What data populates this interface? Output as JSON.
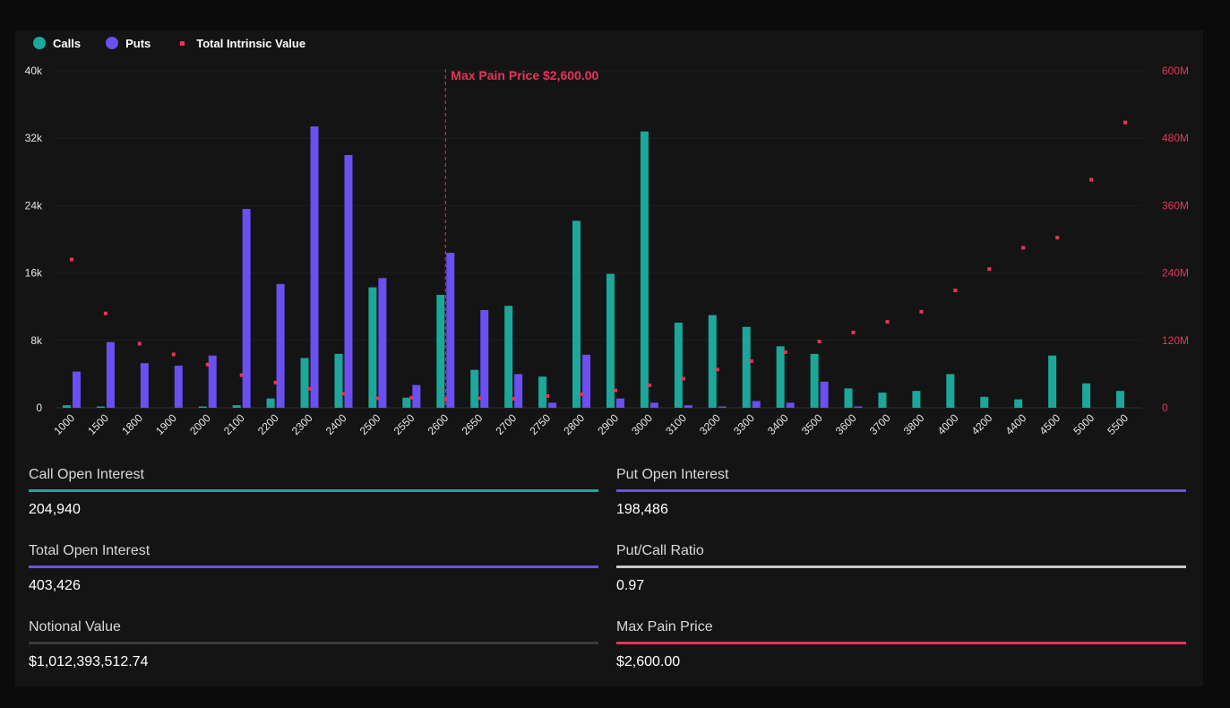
{
  "legend": {
    "calls_label": "Calls",
    "puts_label": "Puts",
    "tiv_label": "Total Intrinsic Value"
  },
  "colors": {
    "calls": "#1ba89a",
    "puts": "#6b4ff0",
    "tiv": "#e8345a",
    "axis_text": "#e6e6e6",
    "right_axis_text": "#e8345a",
    "gridline": "#1e1e1e"
  },
  "chart_data": {
    "type": "bar",
    "categories": [
      "1000",
      "1500",
      "1800",
      "1900",
      "2000",
      "2100",
      "2200",
      "2300",
      "2400",
      "2500",
      "2550",
      "2600",
      "2650",
      "2700",
      "2750",
      "2800",
      "2900",
      "3000",
      "3100",
      "3200",
      "3300",
      "3400",
      "3500",
      "3600",
      "3700",
      "3800",
      "4000",
      "4200",
      "4400",
      "4500",
      "5000",
      "5500"
    ],
    "series": [
      {
        "name": "Calls",
        "axis": "left",
        "values": [
          300,
          150,
          0,
          0,
          150,
          300,
          1100,
          5900,
          6400,
          14300,
          1200,
          13400,
          4500,
          12100,
          3700,
          22200,
          15900,
          32800,
          10100,
          11000,
          9600,
          7300,
          6400,
          2300,
          1800,
          2000,
          4000,
          1300,
          1000,
          6200,
          2900,
          2000
        ]
      },
      {
        "name": "Puts",
        "axis": "left",
        "values": [
          4300,
          7800,
          5300,
          5000,
          6200,
          23600,
          14700,
          33400,
          30000,
          15400,
          2700,
          18400,
          11600,
          4000,
          600,
          6300,
          1100,
          600,
          300,
          150,
          800,
          600,
          3100,
          150,
          0,
          0,
          0,
          0,
          0,
          0,
          0,
          0
        ]
      },
      {
        "name": "Total Intrinsic Value",
        "axis": "right",
        "type": "scatter",
        "values": [
          264000000,
          168000000,
          114000000,
          95000000,
          77000000,
          58000000,
          45000000,
          34000000,
          25000000,
          17000000,
          18000000,
          15000000,
          17000000,
          16000000,
          21000000,
          24000000,
          31000000,
          40000000,
          52000000,
          68000000,
          83000000,
          99000000,
          118000000,
          134000000,
          153000000,
          171000000,
          209000000,
          247000000,
          285000000,
          303000000,
          406000000,
          508000000
        ]
      }
    ],
    "y_left": {
      "min": 0,
      "max": 40000,
      "ticks": [
        "0",
        "8k",
        "16k",
        "24k",
        "32k",
        "40k"
      ],
      "tick_values": [
        0,
        8000,
        16000,
        24000,
        32000,
        40000
      ]
    },
    "y_right": {
      "min": 0,
      "max": 600000000,
      "ticks": [
        "0",
        "120M",
        "240M",
        "360M",
        "480M",
        "600M"
      ],
      "tick_values": [
        0,
        120000000,
        240000000,
        360000000,
        480000000,
        600000000
      ]
    },
    "max_pain": {
      "label": "Max Pain Price $2,600.00",
      "category": "2600"
    },
    "grid": true,
    "legend_position": "top-left"
  },
  "stats": [
    {
      "label": "Call Open Interest",
      "value": "204,940",
      "color": "#1ba89a"
    },
    {
      "label": "Put Open Interest",
      "value": "198,486",
      "color": "#6b4ff0"
    },
    {
      "label": "Total Open Interest",
      "value": "403,426",
      "color": "#6b4ff0"
    },
    {
      "label": "Put/Call Ratio",
      "value": "0.97",
      "color": "#c8c8c8"
    },
    {
      "label": "Notional Value",
      "value": "$1,012,393,512.74",
      "color": "#3a3a3a"
    },
    {
      "label": "Max Pain Price",
      "value": "$2,600.00",
      "color": "#e8345a"
    }
  ]
}
